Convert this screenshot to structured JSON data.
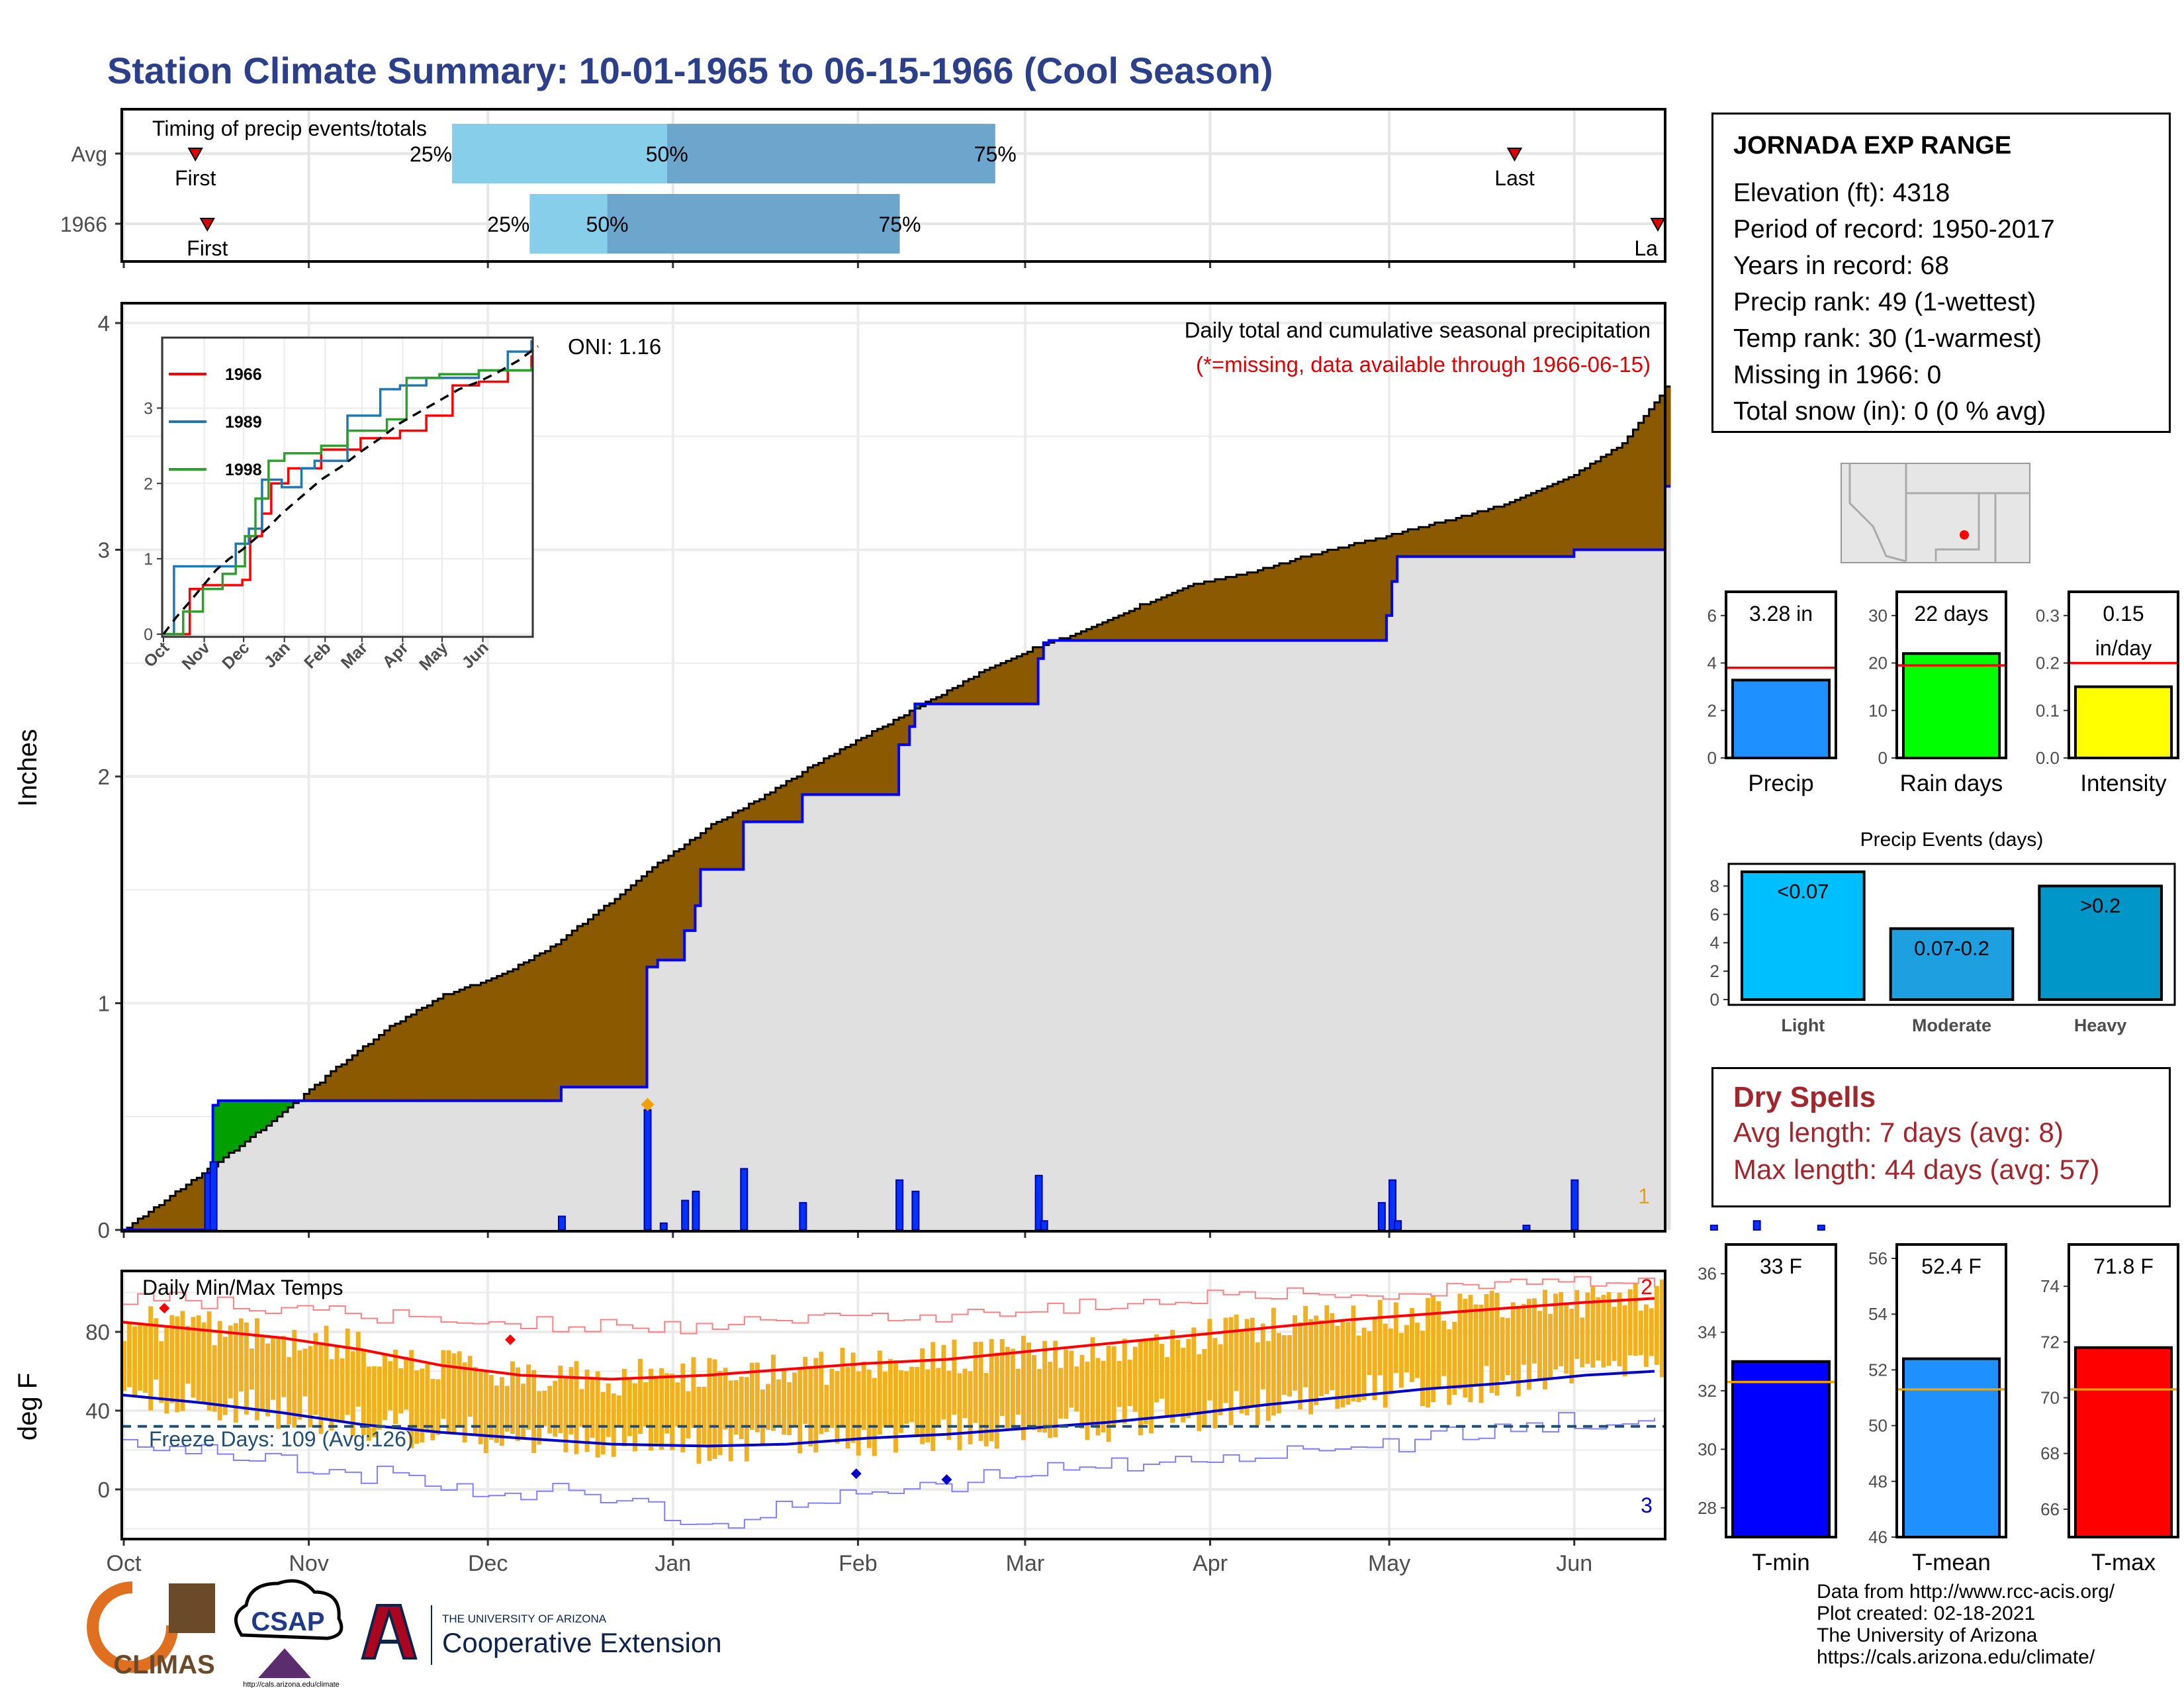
{
  "title": "Station Climate Summary: 10-01-1965 to 06-15-1966 (Cool Season)",
  "station": {
    "name": "JORNADA EXP RANGE",
    "lines": [
      "Elevation (ft): 4318",
      "Period of record: 1950-2017",
      "Years in record: 68",
      "Precip rank: 49 (1-wettest)",
      "Temp rank: 30 (1-warmest)",
      "Missing in 1966: 0",
      "Total snow (in): 0 (0 % avg)"
    ]
  },
  "dry_spells": {
    "title": "Dry Spells",
    "avg_length": "Avg length: 7 days (avg: 8)",
    "max_length": "Max length: 44 days (avg: 57)"
  },
  "credits": [
    "Data from http://www.rcc-acis.org/",
    "Plot created: 02-18-2021",
    "The University of Arizona",
    "https://cals.arizona.edu/climate/"
  ],
  "logos": {
    "climas": "CLIMAS",
    "csap": "CSAP",
    "csap_url": "http://cals.arizona.edu/climate",
    "ua_small": "THE UNIVERSITY OF ARIZONA",
    "ua_big": "Cooperative Extension"
  },
  "colors": {
    "title": "#2b3f8a",
    "deficit": "#8b5a00",
    "surplus": "#00a000",
    "cum_line": "#0000ff",
    "gray_fill": "#e0e0e0",
    "temp_bars": "#f0b020",
    "tmax": "#ff0000",
    "tmin": "#0000cc",
    "light": "#00bfff",
    "moderate": "#1ea0e0",
    "heavy": "#0096c8"
  },
  "chart_data": [
    {
      "id": "timing",
      "type": "bar",
      "title": "Timing of precip events/totals",
      "rows": [
        "Avg",
        "1966"
      ],
      "row_markers": {
        "Avg": {
          "first": "Oct 13",
          "last": "May 22",
          "p25": "Nov 25",
          "p50": "Dec 31",
          "p75": "Feb 24"
        },
        "1966": {
          "first": "Oct 15",
          "last": "Jun 15",
          "p25": "Dec 8",
          "p50": "Dec 21",
          "p75": "Feb 8"
        }
      },
      "labels": {
        "first": "First",
        "last": "Last",
        "p25": "25%",
        "p50": "50%",
        "p75": "75%"
      },
      "last_1966_label": "La"
    },
    {
      "id": "precip",
      "type": "area",
      "title": "Daily total and cumulative seasonal precipitation",
      "note": "(*=missing, data available through 1966-06-15)",
      "oni": "ONI: 1.16",
      "ylabel": "Inches",
      "ylim": [
        0,
        4
      ],
      "yticks": [
        0,
        1,
        2,
        3,
        4
      ],
      "corner_label": "1",
      "avg_cumulative": [
        [
          0,
          0
        ],
        [
          10,
          0.17
        ],
        [
          20,
          0.34
        ],
        [
          30,
          0.52
        ],
        [
          40,
          0.72
        ],
        [
          50,
          0.9
        ],
        [
          60,
          1.04
        ],
        [
          70,
          1.12
        ],
        [
          80,
          1.25
        ],
        [
          90,
          1.43
        ],
        [
          100,
          1.62
        ],
        [
          110,
          1.79
        ],
        [
          120,
          1.92
        ],
        [
          130,
          2.07
        ],
        [
          140,
          2.2
        ],
        [
          150,
          2.33
        ],
        [
          160,
          2.46
        ],
        [
          170,
          2.57
        ],
        [
          180,
          2.65
        ],
        [
          190,
          2.76
        ],
        [
          200,
          2.85
        ],
        [
          210,
          2.9
        ],
        [
          220,
          2.97
        ],
        [
          230,
          3.03
        ],
        [
          240,
          3.09
        ],
        [
          250,
          3.15
        ],
        [
          260,
          3.22
        ],
        [
          270,
          3.32
        ],
        [
          280,
          3.47
        ],
        [
          288,
          3.72
        ]
      ],
      "cumulative_1966": [
        [
          0,
          0
        ],
        [
          15,
          0
        ],
        [
          16,
          0.25
        ],
        [
          17,
          0.55
        ],
        [
          18,
          0.57
        ],
        [
          81,
          0.57
        ],
        [
          82,
          0.63
        ],
        [
          97,
          0.63
        ],
        [
          98,
          1.16
        ],
        [
          99,
          1.16
        ],
        [
          100,
          1.19
        ],
        [
          104,
          1.19
        ],
        [
          105,
          1.32
        ],
        [
          107,
          1.43
        ],
        [
          108,
          1.59
        ],
        [
          115,
          1.59
        ],
        [
          116,
          1.8
        ],
        [
          126,
          1.8
        ],
        [
          127,
          1.92
        ],
        [
          144,
          1.92
        ],
        [
          145,
          2.14
        ],
        [
          147,
          2.22
        ],
        [
          148,
          2.32
        ],
        [
          170,
          2.32
        ],
        [
          171,
          2.52
        ],
        [
          172,
          2.59
        ],
        [
          173,
          2.6
        ],
        [
          235,
          2.6
        ],
        [
          236,
          2.71
        ],
        [
          237,
          2.86
        ],
        [
          238,
          2.97
        ],
        [
          270,
          2.97
        ],
        [
          271,
          3.0
        ],
        [
          287,
          3.0
        ],
        [
          288,
          3.28
        ]
      ],
      "daily_1966": [
        [
          16,
          0.25
        ],
        [
          17,
          0.3
        ],
        [
          82,
          0.06
        ],
        [
          98,
          0.53
        ],
        [
          101,
          0.03
        ],
        [
          105,
          0.13
        ],
        [
          107,
          0.17
        ],
        [
          116,
          0.27
        ],
        [
          127,
          0.12
        ],
        [
          145,
          0.22
        ],
        [
          148,
          0.17
        ],
        [
          171,
          0.24
        ],
        [
          172,
          0.04
        ],
        [
          235,
          0.12
        ],
        [
          237,
          0.22
        ],
        [
          238,
          0.04
        ],
        [
          262,
          0.02
        ],
        [
          271,
          0.22
        ],
        [
          297,
          0.02
        ],
        [
          305,
          0.04
        ],
        [
          317,
          0.02
        ]
      ],
      "max_point": {
        "x": 98,
        "y": 0.53
      }
    },
    {
      "id": "precip_inset",
      "type": "line",
      "xticks": [
        "Oct",
        "Nov",
        "Dec",
        "Jan",
        "Feb",
        "Mar",
        "Apr",
        "May",
        "Jun"
      ],
      "ylim": [
        0,
        3.9
      ],
      "yticks": [
        0,
        1,
        2,
        3
      ],
      "series": [
        {
          "name": "1966",
          "color": "#ff0000",
          "values": [
            [
              0,
              0
            ],
            [
              20,
              0.6
            ],
            [
              30,
              0.65
            ],
            [
              60,
              0.72
            ],
            [
              66,
              1.3
            ],
            [
              75,
              1.6
            ],
            [
              82,
              2.0
            ],
            [
              95,
              2.2
            ],
            [
              120,
              2.45
            ],
            [
              150,
              2.6
            ],
            [
              180,
              2.7
            ],
            [
              200,
              2.9
            ],
            [
              220,
              3.3
            ],
            [
              240,
              3.35
            ],
            [
              262,
              3.5
            ],
            [
              280,
              3.7
            ]
          ]
        },
        {
          "name": "1989",
          "color": "#1f77b4",
          "values": [
            [
              0,
              0
            ],
            [
              8,
              0.9
            ],
            [
              45,
              0.9
            ],
            [
              55,
              1.2
            ],
            [
              65,
              1.4
            ],
            [
              75,
              2.05
            ],
            [
              90,
              1.95
            ],
            [
              105,
              2.2
            ],
            [
              115,
              2.3
            ],
            [
              140,
              2.9
            ],
            [
              165,
              3.25
            ],
            [
              180,
              3.3
            ],
            [
              200,
              3.4
            ],
            [
              240,
              3.5
            ],
            [
              262,
              3.75
            ],
            [
              280,
              3.9
            ]
          ]
        },
        {
          "name": "1998",
          "color": "#2ca02c",
          "values": [
            [
              0,
              0
            ],
            [
              15,
              0.3
            ],
            [
              30,
              0.6
            ],
            [
              45,
              0.8
            ],
            [
              55,
              0.9
            ],
            [
              62,
              1.3
            ],
            [
              70,
              1.8
            ],
            [
              80,
              2.3
            ],
            [
              92,
              2.4
            ],
            [
              110,
              2.4
            ],
            [
              120,
              2.5
            ],
            [
              140,
              2.7
            ],
            [
              170,
              2.85
            ],
            [
              185,
              3.4
            ],
            [
              210,
              3.45
            ],
            [
              240,
              3.5
            ],
            [
              280,
              3.55
            ]
          ]
        }
      ],
      "avg_line": [
        [
          0,
          0
        ],
        [
          10,
          0.23
        ],
        [
          20,
          0.43
        ],
        [
          30,
          0.64
        ],
        [
          40,
          0.85
        ],
        [
          50,
          1.0
        ],
        [
          60,
          1.12
        ],
        [
          70,
          1.27
        ],
        [
          80,
          1.42
        ],
        [
          90,
          1.6
        ],
        [
          100,
          1.75
        ],
        [
          110,
          1.9
        ],
        [
          120,
          2.05
        ],
        [
          135,
          2.22
        ],
        [
          150,
          2.42
        ],
        [
          165,
          2.6
        ],
        [
          180,
          2.8
        ],
        [
          195,
          2.95
        ],
        [
          210,
          3.1
        ],
        [
          225,
          3.25
        ],
        [
          240,
          3.35
        ],
        [
          255,
          3.48
        ],
        [
          270,
          3.63
        ],
        [
          285,
          3.82
        ]
      ]
    },
    {
      "id": "temp",
      "type": "bar",
      "title": "Daily Min/Max Temps",
      "ylabel": "deg F",
      "ylim": [
        -25,
        112
      ],
      "yticks": [
        0,
        40,
        80
      ],
      "freeze_label": "Freeze Days: 109 (Avg:126)",
      "freeze_threshold": 32,
      "label_max": "2",
      "label_min": "3",
      "xticks": [
        "Oct",
        "Nov",
        "Dec",
        "Jan",
        "Feb",
        "Mar",
        "Apr",
        "May",
        "Jun"
      ],
      "avg_max": [
        [
          0,
          85
        ],
        [
          15,
          81
        ],
        [
          30,
          77
        ],
        [
          45,
          71
        ],
        [
          60,
          63
        ],
        [
          75,
          58
        ],
        [
          92,
          56
        ],
        [
          110,
          58
        ],
        [
          125,
          61
        ],
        [
          140,
          64
        ],
        [
          155,
          66
        ],
        [
          170,
          70
        ],
        [
          185,
          74
        ],
        [
          200,
          78
        ],
        [
          215,
          82
        ],
        [
          230,
          86
        ],
        [
          245,
          89
        ],
        [
          260,
          92
        ],
        [
          275,
          95
        ],
        [
          288,
          97
        ]
      ],
      "avg_min": [
        [
          0,
          48
        ],
        [
          15,
          44
        ],
        [
          30,
          39
        ],
        [
          45,
          33
        ],
        [
          60,
          29
        ],
        [
          75,
          26
        ],
        [
          92,
          23
        ],
        [
          110,
          22
        ],
        [
          125,
          23
        ],
        [
          140,
          26
        ],
        [
          155,
          28
        ],
        [
          170,
          31
        ],
        [
          185,
          34
        ],
        [
          200,
          38
        ],
        [
          215,
          43
        ],
        [
          230,
          47
        ],
        [
          245,
          51
        ],
        [
          260,
          54
        ],
        [
          275,
          58
        ],
        [
          288,
          60
        ]
      ],
      "record_max": [
        [
          0,
          98
        ],
        [
          30,
          92
        ],
        [
          60,
          86
        ],
        [
          92,
          82
        ],
        [
          120,
          84
        ],
        [
          150,
          88
        ],
        [
          180,
          94
        ],
        [
          210,
          98
        ],
        [
          240,
          100
        ],
        [
          270,
          104
        ],
        [
          288,
          105
        ]
      ],
      "record_min": [
        [
          0,
          25
        ],
        [
          30,
          14
        ],
        [
          60,
          2
        ],
        [
          92,
          -4
        ],
        [
          110,
          -18
        ],
        [
          130,
          -6
        ],
        [
          150,
          2
        ],
        [
          170,
          8
        ],
        [
          190,
          14
        ],
        [
          210,
          18
        ],
        [
          240,
          24
        ],
        [
          270,
          34
        ],
        [
          288,
          38
        ]
      ],
      "record_events": [
        {
          "x": 8,
          "y": 92,
          "kind": "max"
        },
        {
          "x": 73,
          "y": 76,
          "kind": "max"
        },
        {
          "x": 138,
          "y": 8,
          "kind": "min"
        },
        {
          "x": 155,
          "y": 5,
          "kind": "min"
        }
      ]
    },
    {
      "id": "gauges",
      "type": "bar",
      "items": [
        {
          "label": "Precip",
          "value": 3.28,
          "avg": 3.8,
          "ylim": [
            0,
            7
          ],
          "yticks": [
            0,
            2,
            4,
            6
          ],
          "text": "3.28 in",
          "color": "#1e90ff"
        },
        {
          "label": "Rain days",
          "value": 22,
          "avg": 19.5,
          "ylim": [
            0,
            35
          ],
          "yticks": [
            0,
            10,
            20,
            30
          ],
          "text": "22 days",
          "color": "#00ff00"
        },
        {
          "label": "Intensity",
          "value": 0.15,
          "avg": 0.2,
          "ylim": [
            0,
            0.35
          ],
          "yticks": [
            0.0,
            0.1,
            0.2,
            0.3
          ],
          "text": "0.15\nin/day",
          "color": "#ffff00"
        }
      ]
    },
    {
      "id": "events",
      "type": "bar",
      "title": "Precip Events (days)",
      "categories": [
        "Light",
        "Moderate",
        "Heavy"
      ],
      "values": [
        9,
        5,
        8
      ],
      "bar_labels": [
        "<0.07",
        "0.07-0.2",
        ">0.2"
      ],
      "ylim": [
        0,
        9
      ],
      "yticks": [
        0,
        2,
        4,
        6,
        8
      ]
    },
    {
      "id": "temp_gauges",
      "type": "bar",
      "items": [
        {
          "label": "T-min",
          "value": 33.0,
          "avg": 32.3,
          "ylim": [
            27,
            37
          ],
          "yticks": [
            28,
            30,
            32,
            34,
            36
          ],
          "text": "33 F",
          "color": "#0000ff"
        },
        {
          "label": "T-mean",
          "value": 52.4,
          "avg": 51.3,
          "ylim": [
            46,
            56.5
          ],
          "yticks": [
            46,
            48,
            50,
            52,
            54,
            56
          ],
          "text": "52.4 F",
          "color": "#1e90ff"
        },
        {
          "label": "T-max",
          "value": 71.8,
          "avg": 70.3,
          "ylim": [
            65,
            75.5
          ],
          "yticks": [
            66,
            68,
            70,
            72,
            74
          ],
          "text": "71.8 F",
          "color": "#ff0000"
        }
      ]
    }
  ]
}
